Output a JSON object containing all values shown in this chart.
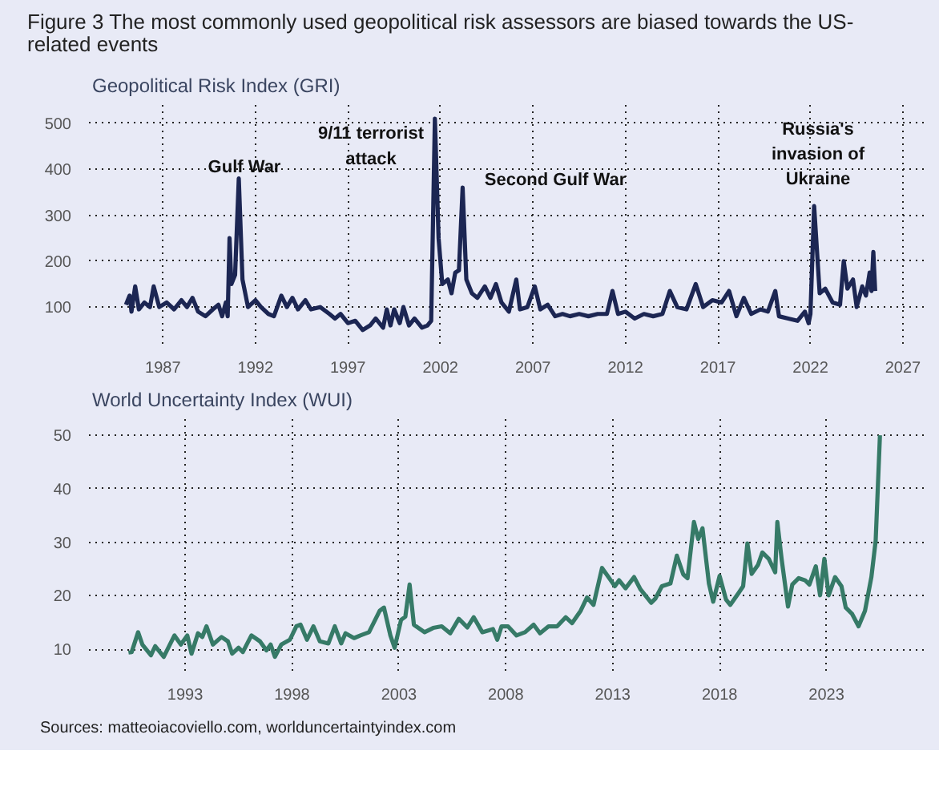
{
  "chart_data": [
    {
      "type": "line",
      "title": "Figure 3 The most commonly used geopolitical risk assessors are biased towards the US-related events",
      "subtitle": "Geopolitical Risk Index (GRI)",
      "x": [
        1985.0,
        1985.2,
        1985.3,
        1985.5,
        1985.7,
        1986.0,
        1986.3,
        1986.5,
        1986.8,
        1987.2,
        1987.6,
        1988.0,
        1988.3,
        1988.6,
        1988.9,
        1989.3,
        1989.7,
        1990.0,
        1990.2,
        1990.4,
        1990.5,
        1990.6,
        1990.7,
        1990.9,
        1991.1,
        1991.3,
        1991.6,
        1992.0,
        1992.3,
        1992.7,
        1993.0,
        1993.4,
        1993.7,
        1994.0,
        1994.3,
        1994.7,
        1995.0,
        1995.5,
        1996.0,
        1996.3,
        1996.6,
        1997.0,
        1997.4,
        1997.8,
        1998.2,
        1998.5,
        1998.9,
        1999.1,
        1999.3,
        1999.5,
        1999.8,
        2000.0,
        2000.3,
        2000.6,
        2001.0,
        2001.3,
        2001.5,
        2001.7,
        2001.9,
        2002.1,
        2002.4,
        2002.6,
        2002.8,
        2003.0,
        2003.2,
        2003.4,
        2003.7,
        2004.0,
        2004.4,
        2004.7,
        2005.0,
        2005.3,
        2005.7,
        2006.1,
        2006.3,
        2006.7,
        2007.1,
        2007.4,
        2007.8,
        2008.2,
        2008.6,
        2009.0,
        2009.5,
        2010.0,
        2010.5,
        2011.0,
        2011.3,
        2011.6,
        2012.0,
        2012.5,
        2013.0,
        2013.5,
        2014.0,
        2014.4,
        2014.8,
        2015.3,
        2015.8,
        2016.2,
        2016.7,
        2017.2,
        2017.6,
        2018.0,
        2018.4,
        2018.8,
        2019.3,
        2019.7,
        2020.1,
        2020.3,
        2020.8,
        2021.3,
        2021.7,
        2021.9,
        2022.0,
        2022.2,
        2022.5,
        2022.8,
        2023.2,
        2023.6,
        2023.8,
        2024.0,
        2024.3,
        2024.5,
        2024.8,
        2025.0,
        2025.2,
        2025.3,
        2025.4,
        2025.5
      ],
      "series": [
        {
          "color": "#1c2653",
          "values": [
            105,
            125,
            90,
            145,
            95,
            110,
            100,
            145,
            100,
            110,
            95,
            115,
            100,
            120,
            90,
            80,
            95,
            105,
            80,
            110,
            80,
            250,
            150,
            170,
            380,
            160,
            100,
            115,
            100,
            85,
            80,
            125,
            100,
            120,
            95,
            115,
            95,
            100,
            85,
            75,
            85,
            65,
            70,
            50,
            60,
            75,
            55,
            95,
            60,
            95,
            65,
            100,
            60,
            75,
            55,
            60,
            70,
            510,
            250,
            150,
            160,
            130,
            175,
            180,
            360,
            160,
            130,
            120,
            145,
            120,
            150,
            110,
            90,
            160,
            95,
            100,
            145,
            95,
            105,
            80,
            85,
            80,
            85,
            80,
            85,
            85,
            135,
            85,
            90,
            75,
            85,
            80,
            85,
            135,
            100,
            95,
            150,
            100,
            115,
            110,
            135,
            80,
            120,
            85,
            95,
            90,
            135,
            80,
            75,
            70,
            90,
            65,
            85,
            320,
            130,
            140,
            110,
            105,
            200,
            140,
            160,
            100,
            145,
            125,
            175,
            135,
            220,
            135
          ]
        }
      ],
      "xlim": [
        1983.0,
        2028.3
      ],
      "ylim": [
        20,
        540
      ],
      "xticks": [
        1987,
        1992,
        1997,
        2002,
        2007,
        2012,
        2017,
        2022,
        2027
      ],
      "yticks": [
        100,
        200,
        300,
        400,
        500
      ],
      "grid": true,
      "annotations": [
        "Gulf War",
        "9/11 terrorist\nattack",
        "Second Gulf War",
        "Russia's\ninvasion of\nUkraine"
      ]
    },
    {
      "type": "line",
      "subtitle": "World Uncertainty Index (WUI)",
      "x": [
        1990.35,
        1990.5,
        1990.8,
        1991.0,
        1991.4,
        1991.6,
        1992.0,
        1992.5,
        1992.8,
        1993.1,
        1993.3,
        1993.6,
        1993.8,
        1994.0,
        1994.3,
        1994.7,
        1995.0,
        1995.2,
        1995.5,
        1995.7,
        1996.1,
        1996.5,
        1996.8,
        1997.0,
        1997.2,
        1997.5,
        1997.9,
        1998.2,
        1998.4,
        1998.7,
        1999.0,
        1999.3,
        1999.7,
        2000.0,
        2000.3,
        2000.5,
        2000.9,
        2001.2,
        2001.6,
        2002.1,
        2002.3,
        2002.6,
        2002.8,
        2003.1,
        2003.3,
        2003.5,
        2003.7,
        2004.2,
        2004.6,
        2005.0,
        2005.4,
        2005.8,
        2006.2,
        2006.5,
        2006.9,
        2007.4,
        2007.6,
        2007.8,
        2008.1,
        2008.5,
        2008.9,
        2009.3,
        2009.6,
        2010.0,
        2010.4,
        2010.8,
        2011.1,
        2011.5,
        2011.8,
        2012.1,
        2012.5,
        2012.8,
        2013.1,
        2013.3,
        2013.6,
        2014.0,
        2014.3,
        2014.8,
        2015.0,
        2015.3,
        2015.7,
        2016.0,
        2016.3,
        2016.5,
        2016.8,
        2017.0,
        2017.2,
        2017.5,
        2017.7,
        2018.0,
        2018.3,
        2018.5,
        2018.9,
        2019.1,
        2019.3,
        2019.5,
        2019.8,
        2020.0,
        2020.3,
        2020.6,
        2020.7,
        2020.9,
        2021.2,
        2021.4,
        2021.7,
        2022.0,
        2022.2,
        2022.5,
        2022.7,
        2022.9,
        2023.1,
        2023.4,
        2023.7,
        2023.9,
        2024.2,
        2024.5,
        2024.8,
        2025.1,
        2025.3,
        2025.5
      ],
      "series": [
        {
          "color": "#367a67",
          "values": [
            9.4,
            9.5,
            13.2,
            10.9,
            8.9,
            10.6,
            8.6,
            12.6,
            10.9,
            12.6,
            9.2,
            13,
            12.3,
            14.3,
            10.9,
            12.3,
            11.5,
            9.2,
            10.3,
            9.5,
            12.6,
            11.5,
            9.8,
            10.9,
            8.6,
            10.9,
            11.8,
            14.3,
            14.6,
            11.8,
            14.3,
            11.5,
            11.1,
            14.3,
            11.1,
            13,
            12.1,
            12.6,
            13.2,
            17.2,
            17.8,
            12.6,
            10.3,
            15.5,
            16.1,
            22.1,
            14.6,
            13.2,
            14,
            14.3,
            13,
            15.7,
            14.1,
            16,
            13.2,
            13.8,
            11.8,
            14.3,
            14.3,
            12.6,
            13.2,
            14.6,
            13,
            14.3,
            14.3,
            16,
            14.9,
            17.2,
            19.7,
            18.3,
            25.2,
            23.5,
            21.8,
            22.9,
            21.4,
            23.5,
            21.2,
            18.7,
            19.5,
            21.8,
            22.3,
            27.5,
            24,
            23.3,
            33.8,
            30.6,
            32.6,
            22.3,
            18.9,
            23.7,
            19.3,
            18.3,
            20.6,
            21.8,
            29.8,
            24.1,
            25.8,
            28.1,
            26.9,
            24.4,
            33.8,
            26.9,
            18,
            22.1,
            23.3,
            22.9,
            22.1,
            25.5,
            20.1,
            26.9,
            20.1,
            23.5,
            21.8,
            17.8,
            16.6,
            14.3,
            17.2,
            23.5,
            30.3,
            50
          ]
        }
      ],
      "xlim": [
        1988.5,
        2027.7
      ],
      "ylim": [
        6,
        53
      ],
      "xticks": [
        1993,
        1998,
        2003,
        2008,
        2013,
        2018,
        2023
      ],
      "yticks": [
        10,
        20,
        30,
        40,
        50
      ],
      "grid": true,
      "annotations": [
        "Sources: matteoiacoviello.com, worlduncertaintyindex.com"
      ]
    }
  ]
}
